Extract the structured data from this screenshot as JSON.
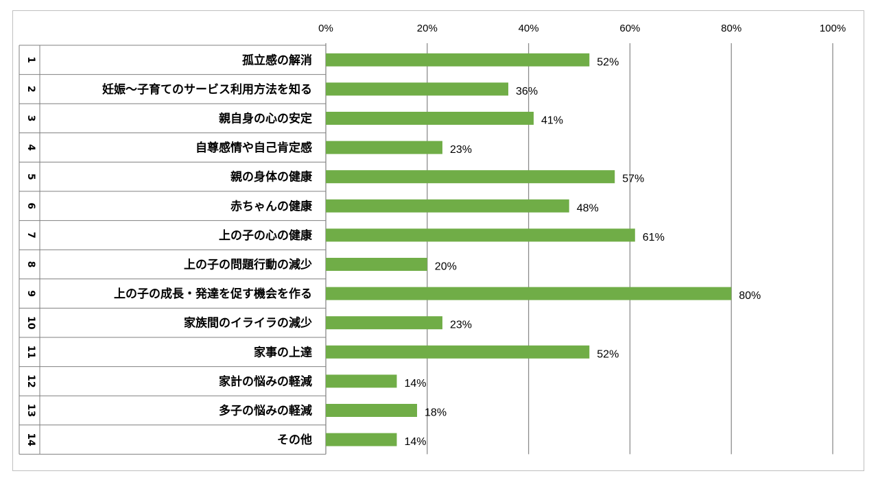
{
  "chart_data": {
    "type": "bar",
    "orientation": "horizontal",
    "categories": [
      {
        "number": "1",
        "label": "孤立感の解消"
      },
      {
        "number": "2",
        "label": "妊娠～子育てのサービス利用方法を知る"
      },
      {
        "number": "3",
        "label": "親自身の心の安定"
      },
      {
        "number": "4",
        "label": "自尊感情や自己肯定感"
      },
      {
        "number": "5",
        "label": "親の身体の健康"
      },
      {
        "number": "6",
        "label": "赤ちゃんの健康"
      },
      {
        "number": "7",
        "label": "上の子の心の健康"
      },
      {
        "number": "8",
        "label": "上の子の問題行動の減少"
      },
      {
        "number": "9",
        "label": "上の子の成長・発達を促す機会を作る"
      },
      {
        "number": "10",
        "label": "家族間のイライラの減少"
      },
      {
        "number": "11",
        "label": "家事の上達"
      },
      {
        "number": "12",
        "label": "家計の悩みの軽減"
      },
      {
        "number": "13",
        "label": "多子の悩みの軽減"
      },
      {
        "number": "14",
        "label": "その他"
      }
    ],
    "values": [
      52,
      36,
      41,
      23,
      57,
      48,
      61,
      20,
      80,
      23,
      52,
      14,
      18,
      14
    ],
    "value_labels": [
      "52%",
      "36%",
      "41%",
      "23%",
      "57%",
      "48%",
      "61%",
      "20%",
      "80%",
      "23%",
      "52%",
      "14%",
      "18%",
      "14%"
    ],
    "x_ticks": [
      "0%",
      "20%",
      "40%",
      "60%",
      "80%",
      "100%"
    ],
    "xlim": [
      0,
      100
    ],
    "grid": true,
    "bar_color": "#70ad47"
  }
}
